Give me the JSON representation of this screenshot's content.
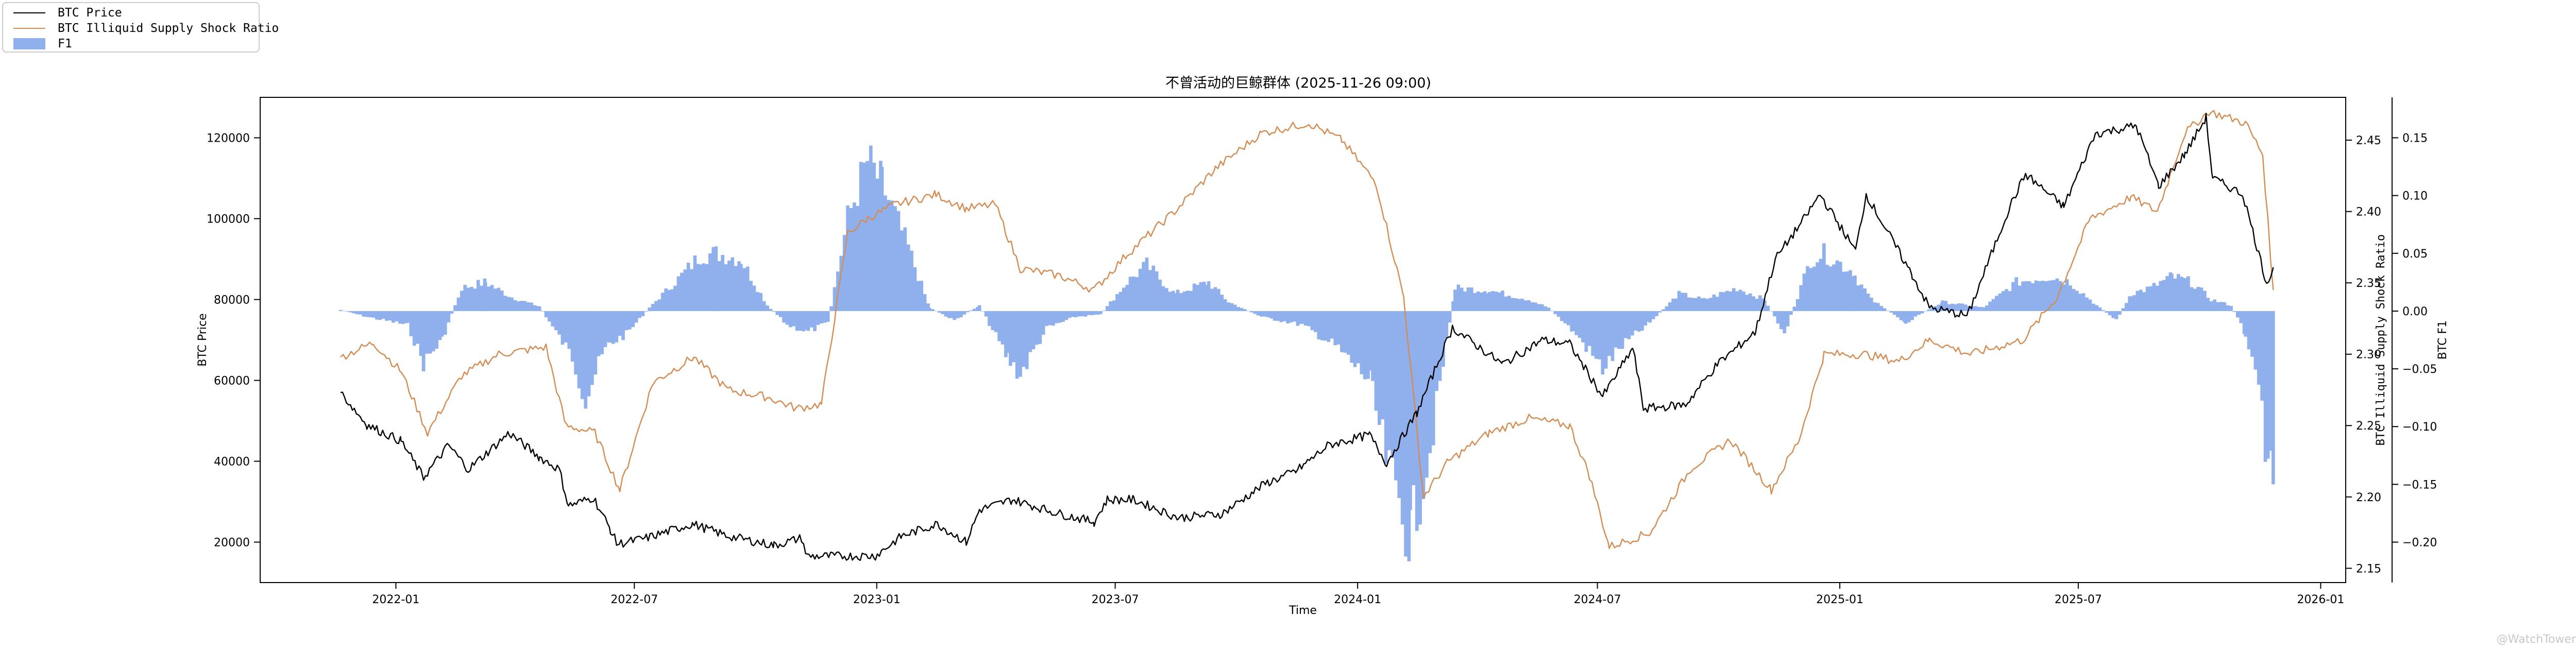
{
  "chart_data": {
    "type": "line",
    "title": "不曾活动的巨鲸群体 (2025-11-26 09:00)",
    "xlabel": "Time",
    "x_ticks": [
      "2022-01",
      "2022-07",
      "2023-01",
      "2023-07",
      "2024-01",
      "2024-07",
      "2025-01",
      "2025-07",
      "2026-01"
    ],
    "x_range": [
      "2021-09-20",
      "2026-01-20"
    ],
    "grid": false,
    "legend_placement": "top-left",
    "axes": {
      "left": {
        "label": "BTC Price",
        "range": [
          10000,
          130000
        ],
        "ticks": [
          20000,
          40000,
          60000,
          80000,
          100000,
          120000
        ]
      },
      "right_inner": {
        "label": "BTC Illiquid Supply Shock Ratio",
        "range": [
          2.14,
          2.48
        ],
        "ticks": [
          2.15,
          2.2,
          2.25,
          2.3,
          2.35,
          2.4,
          2.45
        ]
      },
      "right_outer": {
        "label": "BTC F1",
        "range": [
          -0.235,
          0.185
        ],
        "ticks": [
          -0.2,
          -0.15,
          -0.1,
          -0.05,
          0.0,
          0.05,
          0.1,
          0.15
        ]
      }
    },
    "series": [
      {
        "name": "BTC Price",
        "axis": "left",
        "color": "#000000",
        "points": [
          [
            "2021-11-20",
            57000
          ],
          [
            "2021-12-10",
            49000
          ],
          [
            "2022-01-05",
            45000
          ],
          [
            "2022-01-22",
            36000
          ],
          [
            "2022-02-10",
            44000
          ],
          [
            "2022-02-25",
            38000
          ],
          [
            "2022-03-28",
            47000
          ],
          [
            "2022-04-20",
            41000
          ],
          [
            "2022-05-05",
            38000
          ],
          [
            "2022-05-12",
            29000
          ],
          [
            "2022-05-31",
            31000
          ],
          [
            "2022-06-13",
            23000
          ],
          [
            "2022-06-18",
            19500
          ],
          [
            "2022-07-10",
            21000
          ],
          [
            "2022-08-14",
            24500
          ],
          [
            "2022-09-10",
            21500
          ],
          [
            "2022-10-15",
            19200
          ],
          [
            "2022-11-05",
            21000
          ],
          [
            "2022-11-09",
            16500
          ],
          [
            "2022-12-31",
            16600
          ],
          [
            "2023-01-20",
            21500
          ],
          [
            "2023-02-16",
            24500
          ],
          [
            "2023-03-10",
            20000
          ],
          [
            "2023-03-20",
            28000
          ],
          [
            "2023-04-14",
            30500
          ],
          [
            "2023-05-20",
            27000
          ],
          [
            "2023-06-15",
            25000
          ],
          [
            "2023-06-25",
            30500
          ],
          [
            "2023-07-15",
            30500
          ],
          [
            "2023-08-18",
            26000
          ],
          [
            "2023-09-20",
            27000
          ],
          [
            "2023-10-23",
            34500
          ],
          [
            "2023-11-15",
            37500
          ],
          [
            "2023-12-10",
            44000
          ],
          [
            "2024-01-10",
            46500
          ],
          [
            "2024-01-23",
            39500
          ],
          [
            "2024-02-15",
            52000
          ],
          [
            "2024-03-13",
            73000
          ],
          [
            "2024-04-20",
            64000
          ],
          [
            "2024-05-20",
            70000
          ],
          [
            "2024-06-10",
            69000
          ],
          [
            "2024-07-05",
            56000
          ],
          [
            "2024-07-28",
            68000
          ],
          [
            "2024-08-05",
            53000
          ],
          [
            "2024-09-06",
            54000
          ],
          [
            "2024-09-30",
            64000
          ],
          [
            "2024-10-29",
            72000
          ],
          [
            "2024-11-13",
            90000
          ],
          [
            "2024-12-05",
            100000
          ],
          [
            "2024-12-17",
            106000
          ],
          [
            "2025-01-13",
            92000
          ],
          [
            "2025-01-21",
            106000
          ],
          [
            "2025-02-25",
            86000
          ],
          [
            "2025-03-10",
            78000
          ],
          [
            "2025-04-08",
            76000
          ],
          [
            "2025-05-10",
            103000
          ],
          [
            "2025-05-22",
            111000
          ],
          [
            "2025-06-20",
            103000
          ],
          [
            "2025-07-14",
            121000
          ],
          [
            "2025-08-14",
            123000
          ],
          [
            "2025-08-31",
            108000
          ],
          [
            "2025-09-20",
            116000
          ],
          [
            "2025-10-06",
            125000
          ],
          [
            "2025-10-11",
            110000
          ],
          [
            "2025-11-03",
            106000
          ],
          [
            "2025-11-21",
            84000
          ],
          [
            "2025-11-26",
            88000
          ]
        ]
      },
      {
        "name": "BTC Illiquid Supply Shock Ratio",
        "axis": "right_inner",
        "color": "#d48c52",
        "points": [
          [
            "2021-11-20",
            2.298
          ],
          [
            "2021-12-15",
            2.308
          ],
          [
            "2022-01-05",
            2.288
          ],
          [
            "2022-01-25",
            2.245
          ],
          [
            "2022-02-20",
            2.285
          ],
          [
            "2022-03-20",
            2.3
          ],
          [
            "2022-04-25",
            2.305
          ],
          [
            "2022-05-10",
            2.25
          ],
          [
            "2022-06-01",
            2.245
          ],
          [
            "2022-06-20",
            2.205
          ],
          [
            "2022-07-15",
            2.28
          ],
          [
            "2022-08-15",
            2.298
          ],
          [
            "2022-09-10",
            2.275
          ],
          [
            "2022-10-10",
            2.27
          ],
          [
            "2022-11-01",
            2.262
          ],
          [
            "2022-11-20",
            2.265
          ],
          [
            "2022-12-10",
            2.385
          ],
          [
            "2022-12-25",
            2.395
          ],
          [
            "2023-01-15",
            2.405
          ],
          [
            "2023-02-15",
            2.412
          ],
          [
            "2023-03-10",
            2.402
          ],
          [
            "2023-04-01",
            2.405
          ],
          [
            "2023-04-20",
            2.36
          ],
          [
            "2023-05-20",
            2.355
          ],
          [
            "2023-06-15",
            2.345
          ],
          [
            "2023-07-10",
            2.37
          ],
          [
            "2023-08-15",
            2.4
          ],
          [
            "2023-09-15",
            2.43
          ],
          [
            "2023-10-20",
            2.455
          ],
          [
            "2023-11-25",
            2.462
          ],
          [
            "2023-12-20",
            2.45
          ],
          [
            "2024-01-15",
            2.42
          ],
          [
            "2024-02-05",
            2.34
          ],
          [
            "2024-02-20",
            2.2
          ],
          [
            "2024-03-10",
            2.225
          ],
          [
            "2024-04-10",
            2.245
          ],
          [
            "2024-05-10",
            2.255
          ],
          [
            "2024-06-10",
            2.25
          ],
          [
            "2024-06-25",
            2.215
          ],
          [
            "2024-07-10",
            2.165
          ],
          [
            "2024-08-10",
            2.175
          ],
          [
            "2024-09-10",
            2.22
          ],
          [
            "2024-10-10",
            2.24
          ],
          [
            "2024-11-10",
            2.205
          ],
          [
            "2024-12-01",
            2.24
          ],
          [
            "2024-12-20",
            2.3
          ],
          [
            "2025-01-20",
            2.3
          ],
          [
            "2025-02-15",
            2.295
          ],
          [
            "2025-03-10",
            2.31
          ],
          [
            "2025-04-10",
            2.3
          ],
          [
            "2025-05-20",
            2.31
          ],
          [
            "2025-06-15",
            2.34
          ],
          [
            "2025-07-10",
            2.395
          ],
          [
            "2025-08-10",
            2.41
          ],
          [
            "2025-08-30",
            2.4
          ],
          [
            "2025-09-20",
            2.455
          ],
          [
            "2025-10-08",
            2.47
          ],
          [
            "2025-11-05",
            2.462
          ],
          [
            "2025-11-18",
            2.44
          ],
          [
            "2025-11-26",
            2.345
          ]
        ]
      },
      {
        "name": "F1",
        "axis": "right_outer",
        "type": "bar",
        "color": "#8fb0ec",
        "points": [
          [
            "2021-11-20",
            0.001
          ],
          [
            "2021-12-10",
            -0.005
          ],
          [
            "2022-01-10",
            -0.012
          ],
          [
            "2022-01-22",
            -0.045
          ],
          [
            "2022-02-05",
            -0.025
          ],
          [
            "2022-02-20",
            0.02
          ],
          [
            "2022-03-10",
            0.025
          ],
          [
            "2022-03-30",
            0.012
          ],
          [
            "2022-04-20",
            0.004
          ],
          [
            "2022-05-15",
            -0.04
          ],
          [
            "2022-05-25",
            -0.075
          ],
          [
            "2022-06-10",
            -0.03
          ],
          [
            "2022-06-25",
            -0.02
          ],
          [
            "2022-07-15",
            0.006
          ],
          [
            "2022-08-01",
            0.025
          ],
          [
            "2022-08-20",
            0.048
          ],
          [
            "2022-09-01",
            0.05
          ],
          [
            "2022-09-20",
            0.045
          ],
          [
            "2022-10-10",
            0.005
          ],
          [
            "2022-10-25",
            -0.012
          ],
          [
            "2022-11-10",
            -0.018
          ],
          [
            "2022-11-25",
            -0.01
          ],
          [
            "2022-12-10",
            0.08
          ],
          [
            "2022-12-25",
            0.13
          ],
          [
            "2023-01-05",
            0.11
          ],
          [
            "2023-01-25",
            0.055
          ],
          [
            "2023-02-10",
            0.003
          ],
          [
            "2023-03-01",
            -0.008
          ],
          [
            "2023-03-20",
            0.005
          ],
          [
            "2023-04-10",
            -0.04
          ],
          [
            "2023-04-20",
            -0.055
          ],
          [
            "2023-05-10",
            -0.015
          ],
          [
            "2023-06-01",
            -0.005
          ],
          [
            "2023-06-20",
            -0.003
          ],
          [
            "2023-07-10",
            0.025
          ],
          [
            "2023-07-25",
            0.04
          ],
          [
            "2023-08-15",
            0.015
          ],
          [
            "2023-09-10",
            0.025
          ],
          [
            "2023-09-25",
            0.008
          ],
          [
            "2023-10-20",
            -0.005
          ],
          [
            "2023-11-20",
            -0.012
          ],
          [
            "2023-12-15",
            -0.03
          ],
          [
            "2024-01-10",
            -0.06
          ],
          [
            "2024-01-25",
            -0.14
          ],
          [
            "2024-02-10",
            -0.195
          ],
          [
            "2024-02-25",
            -0.12
          ],
          [
            "2024-03-15",
            0.02
          ],
          [
            "2024-04-10",
            0.018
          ],
          [
            "2024-05-10",
            0.01
          ],
          [
            "2024-05-25",
            0.003
          ],
          [
            "2024-06-15",
            -0.02
          ],
          [
            "2024-07-05",
            -0.05
          ],
          [
            "2024-07-20",
            -0.03
          ],
          [
            "2024-08-10",
            -0.01
          ],
          [
            "2024-09-01",
            0.015
          ],
          [
            "2024-09-20",
            0.01
          ],
          [
            "2024-10-15",
            0.02
          ],
          [
            "2024-11-05",
            0.01
          ],
          [
            "2024-11-20",
            -0.02
          ],
          [
            "2024-12-10",
            0.045
          ],
          [
            "2024-12-20",
            0.05
          ],
          [
            "2025-01-10",
            0.035
          ],
          [
            "2025-01-25",
            0.01
          ],
          [
            "2025-02-20",
            -0.01
          ],
          [
            "2025-03-20",
            0.008
          ],
          [
            "2025-04-20",
            0.003
          ],
          [
            "2025-05-15",
            0.025
          ],
          [
            "2025-06-10",
            0.03
          ],
          [
            "2025-06-25",
            0.025
          ],
          [
            "2025-07-15",
            0.005
          ],
          [
            "2025-07-30",
            -0.008
          ],
          [
            "2025-08-10",
            0.015
          ],
          [
            "2025-08-25",
            0.02
          ],
          [
            "2025-09-10",
            0.03
          ],
          [
            "2025-09-25",
            0.025
          ],
          [
            "2025-10-10",
            0.01
          ],
          [
            "2025-10-25",
            0.005
          ],
          [
            "2025-11-05",
            -0.02
          ],
          [
            "2025-11-15",
            -0.06
          ],
          [
            "2025-11-22",
            -0.145
          ],
          [
            "2025-11-26",
            -0.135
          ]
        ]
      }
    ],
    "legend": [
      "BTC Price",
      "BTC Illiquid Supply Shock Ratio",
      "F1"
    ]
  },
  "watermark": "@WatchTower"
}
